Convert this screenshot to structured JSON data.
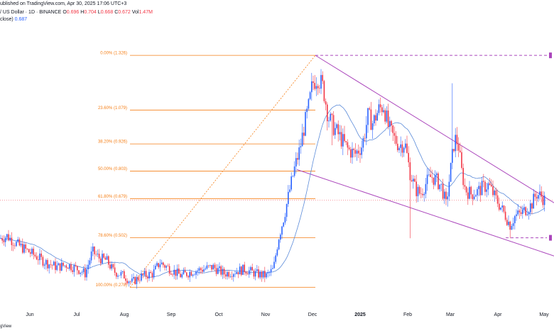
{
  "header": {
    "line1": "ublished on TradingView.com, Apr 30, 2025 17:06 UTC+3",
    "line2_prefix": "/ US Dollar · 1D · BINANCE",
    "ohlc": {
      "o_label": "O",
      "o": "0.696",
      "h_label": "H",
      "h": "0.704",
      "l_label": "L",
      "l": "0.668",
      "c_label": "C",
      "c": "0.672",
      "v_label": "Vol",
      "v": "1.47M"
    },
    "line3_label": "close)",
    "line3_value": "0.687"
  },
  "watermark": "gView",
  "colors": {
    "up": "#2962ff",
    "down": "#f23645",
    "ma": "#5b8bd9",
    "fib": "#f57f17",
    "wedge": "#ab47bc",
    "price_line": "#f23645",
    "fib_trend": "#f57f17"
  },
  "chart_data": {
    "type": "candlestick",
    "timeframe": "1D",
    "y_range": [
      0.2,
      1.48
    ],
    "x_months": [
      "Jun",
      "Jul",
      "Aug",
      "Sep",
      "Oct",
      "Nov",
      "Dec",
      "2025",
      "Feb",
      "Mar",
      "Apr",
      "May"
    ],
    "fib_levels": [
      {
        "ratio": "0.00%",
        "price": 1.326,
        "label": "0.00% (1.326)"
      },
      {
        "ratio": "23.60%",
        "price": 1.079,
        "label": "23.60% (1.079)"
      },
      {
        "ratio": "38.20%",
        "price": 0.926,
        "label": "38.20% (0.926)"
      },
      {
        "ratio": "50.00%",
        "price": 0.803,
        "label": "50.00% (0.803)"
      },
      {
        "ratio": "61.80%",
        "price": 0.679,
        "label": "61.80% (0.679)"
      },
      {
        "ratio": "78.60%",
        "price": 0.502,
        "label": "78.60% (0.502)"
      },
      {
        "ratio": "100.00%",
        "price": 0.278,
        "label": "100.00% (0.278)"
      }
    ],
    "last_price": 0.672,
    "price_anchors": [
      [
        0,
        0.5
      ],
      [
        10,
        0.51
      ],
      [
        25,
        0.47
      ],
      [
        45,
        0.43
      ],
      [
        65,
        0.39
      ],
      [
        80,
        0.37
      ],
      [
        95,
        0.38
      ],
      [
        110,
        0.36
      ],
      [
        120,
        0.34
      ],
      [
        130,
        0.44
      ],
      [
        140,
        0.41
      ],
      [
        150,
        0.4
      ],
      [
        160,
        0.35
      ],
      [
        175,
        0.33
      ],
      [
        185,
        0.3
      ],
      [
        200,
        0.33
      ],
      [
        215,
        0.34
      ],
      [
        225,
        0.39
      ],
      [
        240,
        0.36
      ],
      [
        255,
        0.33
      ],
      [
        270,
        0.35
      ],
      [
        285,
        0.36
      ],
      [
        300,
        0.37
      ],
      [
        315,
        0.34
      ],
      [
        330,
        0.35
      ],
      [
        345,
        0.36
      ],
      [
        360,
        0.34
      ],
      [
        375,
        0.33
      ],
      [
        385,
        0.36
      ],
      [
        392,
        0.5
      ],
      [
        400,
        0.6
      ],
      [
        408,
        0.72
      ],
      [
        415,
        0.82
      ],
      [
        422,
        0.9
      ],
      [
        428,
        1.0
      ],
      [
        435,
        1.1
      ],
      [
        440,
        1.2
      ],
      [
        447,
        1.23
      ],
      [
        455,
        1.18
      ],
      [
        462,
        1.05
      ],
      [
        470,
        1.0
      ],
      [
        480,
        0.95
      ],
      [
        490,
        0.9
      ],
      [
        500,
        0.88
      ],
      [
        510,
        0.92
      ],
      [
        518,
        1.05
      ],
      [
        525,
        1.02
      ],
      [
        533,
        1.08
      ],
      [
        540,
        1.1
      ],
      [
        547,
        1.0
      ],
      [
        555,
        0.95
      ],
      [
        562,
        0.92
      ],
      [
        570,
        0.93
      ],
      [
        577,
        0.8
      ],
      [
        585,
        0.72
      ],
      [
        592,
        0.7
      ],
      [
        600,
        0.75
      ],
      [
        607,
        0.78
      ],
      [
        615,
        0.76
      ],
      [
        622,
        0.73
      ],
      [
        628,
        0.65
      ],
      [
        634,
        0.8
      ],
      [
        640,
        0.95
      ],
      [
        645,
        0.93
      ],
      [
        650,
        0.8
      ],
      [
        655,
        0.72
      ],
      [
        663,
        0.7
      ],
      [
        672,
        0.71
      ],
      [
        680,
        0.73
      ],
      [
        688,
        0.74
      ],
      [
        696,
        0.69
      ],
      [
        705,
        0.64
      ],
      [
        712,
        0.6
      ],
      [
        718,
        0.56
      ],
      [
        725,
        0.6
      ],
      [
        733,
        0.61
      ],
      [
        740,
        0.63
      ],
      [
        748,
        0.65
      ],
      [
        755,
        0.7
      ],
      [
        762,
        0.69
      ],
      [
        767,
        0.672
      ]
    ],
    "spikes": [
      {
        "x": 636,
        "high": 1.2
      },
      {
        "x": 578,
        "low": 0.5
      },
      {
        "x": 468,
        "low": 0.92
      },
      {
        "x": 718,
        "low": 0.5
      }
    ]
  }
}
